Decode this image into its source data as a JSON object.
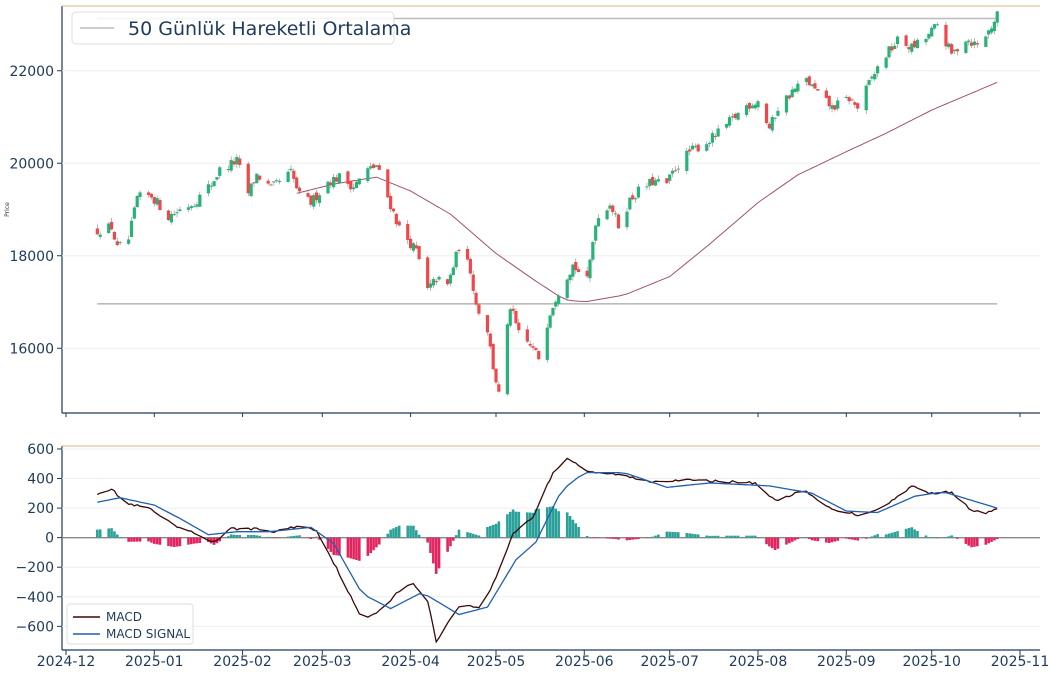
{
  "chart_data": [
    {
      "type": "candlestick",
      "ylabel": "Price",
      "ylim": [
        14600,
        23400
      ],
      "yticks": [
        "16000",
        "18000",
        "20000",
        "22000"
      ],
      "ytick_values": [
        16000,
        18000,
        20000,
        22000
      ],
      "legend": {
        "entries": [
          {
            "label": "50 Günlük Hareketli Ortalama",
            "color": "#bbbbbb"
          }
        ],
        "placement": "top-left"
      },
      "horizontal_lines": [
        {
          "value": 16960,
          "color": "#bbbbbb"
        },
        {
          "value": 23130,
          "color": "#bbbbbb"
        }
      ],
      "series": {
        "close_anchors": [
          [
            "2024-12-12",
            18550
          ],
          [
            "2024-12-17",
            18620
          ],
          [
            "2024-12-19",
            18150
          ],
          [
            "2024-12-23",
            18350
          ],
          [
            "2024-12-26",
            19250
          ],
          [
            "2024-12-31",
            19300
          ],
          [
            "2025-01-06",
            18850
          ],
          [
            "2025-01-10",
            19000
          ],
          [
            "2025-01-15",
            19150
          ],
          [
            "2025-01-21",
            19550
          ],
          [
            "2025-01-24",
            19850
          ],
          [
            "2025-01-30",
            20050
          ],
          [
            "2025-02-03",
            19350
          ],
          [
            "2025-02-06",
            19750
          ],
          [
            "2025-02-11",
            19450
          ],
          [
            "2025-02-18",
            19800
          ],
          [
            "2025-02-21",
            19300
          ],
          [
            "2025-02-25",
            19150
          ],
          [
            "2025-03-03",
            19600
          ],
          [
            "2025-03-07",
            19700
          ],
          [
            "2025-03-12",
            19500
          ],
          [
            "2025-03-17",
            19850
          ],
          [
            "2025-03-20",
            19950
          ],
          [
            "2025-03-25",
            19100
          ],
          [
            "2025-03-28",
            18600
          ],
          [
            "2025-04-03",
            18100
          ],
          [
            "2025-04-07",
            17250
          ],
          [
            "2025-04-10",
            17500
          ],
          [
            "2025-04-14",
            17350
          ],
          [
            "2025-04-18",
            18200
          ],
          [
            "2025-04-22",
            17700
          ],
          [
            "2025-04-24",
            16950
          ],
          [
            "2025-04-28",
            16400
          ],
          [
            "2025-04-30",
            15600
          ],
          [
            "2025-05-02",
            15000
          ],
          [
            "2025-05-06",
            16900
          ],
          [
            "2025-05-09",
            16300
          ],
          [
            "2025-05-13",
            16050
          ],
          [
            "2025-05-16",
            15800
          ],
          [
            "2025-05-20",
            16800
          ],
          [
            "2025-05-23",
            17250
          ],
          [
            "2025-05-28",
            17800
          ],
          [
            "2025-06-02",
            17450
          ],
          [
            "2025-06-05",
            18750
          ],
          [
            "2025-06-10",
            19150
          ],
          [
            "2025-06-13",
            18650
          ],
          [
            "2025-06-17",
            19200
          ],
          [
            "2025-06-20",
            19400
          ],
          [
            "2025-06-25",
            19600
          ],
          [
            "2025-06-30",
            19550
          ],
          [
            "2025-07-03",
            19900
          ],
          [
            "2025-07-08",
            20250
          ],
          [
            "2025-07-14",
            20450
          ],
          [
            "2025-07-18",
            20650
          ],
          [
            "2025-07-23",
            20950
          ],
          [
            "2025-07-28",
            21250
          ],
          [
            "2025-08-01",
            21350
          ],
          [
            "2025-08-05",
            20750
          ],
          [
            "2025-08-08",
            21200
          ],
          [
            "2025-08-13",
            21550
          ],
          [
            "2025-08-18",
            21800
          ],
          [
            "2025-08-22",
            21500
          ],
          [
            "2025-08-27",
            21200
          ],
          [
            "2025-09-02",
            21400
          ],
          [
            "2025-09-05",
            21200
          ],
          [
            "2025-09-10",
            21850
          ],
          [
            "2025-09-15",
            22350
          ],
          [
            "2025-09-19",
            22650
          ],
          [
            "2025-09-24",
            22500
          ],
          [
            "2025-09-29",
            22700
          ],
          [
            "2025-10-03",
            23000
          ],
          [
            "2025-10-08",
            22350
          ],
          [
            "2025-10-13",
            22700
          ],
          [
            "2025-10-17",
            22550
          ],
          [
            "2025-10-21",
            22850
          ],
          [
            "2025-10-24",
            23200
          ]
        ],
        "ma50_anchors": [
          [
            "2025-02-20",
            19350
          ],
          [
            "2025-03-05",
            19550
          ],
          [
            "2025-03-20",
            19700
          ],
          [
            "2025-04-01",
            19400
          ],
          [
            "2025-04-15",
            18900
          ],
          [
            "2025-05-01",
            18050
          ],
          [
            "2025-05-15",
            17450
          ],
          [
            "2025-05-25",
            17050
          ],
          [
            "2025-06-01",
            17000
          ],
          [
            "2025-06-15",
            17150
          ],
          [
            "2025-07-01",
            17550
          ],
          [
            "2025-07-15",
            18250
          ],
          [
            "2025-08-01",
            19150
          ],
          [
            "2025-08-15",
            19750
          ],
          [
            "2025-09-01",
            20250
          ],
          [
            "2025-09-15",
            20650
          ],
          [
            "2025-10-01",
            21150
          ],
          [
            "2025-10-24",
            21750
          ]
        ],
        "bullish_color": "#27b378",
        "bearish_color": "#f0484a",
        "ma_color": "#a05070"
      }
    },
    {
      "type": "line",
      "ylim": [
        -760,
        620
      ],
      "yticks": [
        "−600",
        "−400",
        "−200",
        "0",
        "200",
        "400",
        "600"
      ],
      "ytick_values": [
        -600,
        -400,
        -200,
        0,
        200,
        400,
        600
      ],
      "legend": {
        "entries": [
          {
            "label": "MACD",
            "color": "#3a0a0a"
          },
          {
            "label": "MACD SIGNAL",
            "color": "#1f5fb0"
          }
        ],
        "placement": "bottom-left"
      },
      "series": [
        {
          "name": "MACD",
          "color": "#3a0a0a",
          "anchors": [
            [
              "2024-12-12",
              300
            ],
            [
              "2024-12-17",
              330
            ],
            [
              "2024-12-22",
              230
            ],
            [
              "2024-12-30",
              200
            ],
            [
              "2025-01-08",
              80
            ],
            [
              "2025-01-15",
              30
            ],
            [
              "2025-01-22",
              -30
            ],
            [
              "2025-01-28",
              60
            ],
            [
              "2025-02-05",
              60
            ],
            [
              "2025-02-12",
              40
            ],
            [
              "2025-02-21",
              80
            ],
            [
              "2025-02-27",
              50
            ],
            [
              "2025-03-08",
              -280
            ],
            [
              "2025-03-15",
              -560
            ],
            [
              "2025-03-22",
              -480
            ],
            [
              "2025-03-28",
              -360
            ],
            [
              "2025-04-02",
              -310
            ],
            [
              "2025-04-07",
              -430
            ],
            [
              "2025-04-10",
              -700
            ],
            [
              "2025-04-18",
              -460
            ],
            [
              "2025-04-26",
              -470
            ],
            [
              "2025-05-01",
              -270
            ],
            [
              "2025-05-07",
              30
            ],
            [
              "2025-05-14",
              140
            ],
            [
              "2025-05-21",
              440
            ],
            [
              "2025-05-26",
              540
            ],
            [
              "2025-06-03",
              440
            ],
            [
              "2025-06-12",
              430
            ],
            [
              "2025-06-24",
              380
            ],
            [
              "2025-07-05",
              390
            ],
            [
              "2025-07-20",
              380
            ],
            [
              "2025-07-31",
              370
            ],
            [
              "2025-08-07",
              250
            ],
            [
              "2025-08-17",
              320
            ],
            [
              "2025-08-26",
              200
            ],
            [
              "2025-09-06",
              150
            ],
            [
              "2025-09-15",
              220
            ],
            [
              "2025-09-24",
              350
            ],
            [
              "2025-09-30",
              300
            ],
            [
              "2025-10-08",
              310
            ],
            [
              "2025-10-15",
              180
            ],
            [
              "2025-10-20",
              170
            ],
            [
              "2025-10-24",
              190
            ]
          ]
        },
        {
          "name": "MACD SIGNAL",
          "color": "#1f5fb0",
          "anchors": [
            [
              "2024-12-12",
              240
            ],
            [
              "2024-12-20",
              270
            ],
            [
              "2025-01-01",
              220
            ],
            [
              "2025-01-10",
              130
            ],
            [
              "2025-01-20",
              20
            ],
            [
              "2025-01-30",
              40
            ],
            [
              "2025-02-10",
              40
            ],
            [
              "2025-02-25",
              70
            ],
            [
              "2025-03-05",
              -40
            ],
            [
              "2025-03-15",
              -380
            ],
            [
              "2025-03-25",
              -480
            ],
            [
              "2025-04-05",
              -370
            ],
            [
              "2025-04-18",
              -520
            ],
            [
              "2025-04-28",
              -470
            ],
            [
              "2025-05-08",
              -150
            ],
            [
              "2025-05-15",
              -30
            ],
            [
              "2025-05-24",
              320
            ],
            [
              "2025-06-01",
              440
            ],
            [
              "2025-06-15",
              440
            ],
            [
              "2025-06-30",
              340
            ],
            [
              "2025-07-15",
              370
            ],
            [
              "2025-08-05",
              350
            ],
            [
              "2025-08-20",
              300
            ],
            [
              "2025-09-01",
              180
            ],
            [
              "2025-09-12",
              170
            ],
            [
              "2025-09-25",
              280
            ],
            [
              "2025-10-05",
              310
            ],
            [
              "2025-10-12",
              270
            ],
            [
              "2025-10-24",
              200
            ]
          ]
        }
      ],
      "histogram": {
        "positive_color": "#2aa198",
        "negative_color": "#e0245e"
      },
      "xticks": [
        "2024-12",
        "2025-01",
        "2025-02",
        "2025-03",
        "2025-04",
        "2025-05",
        "2025-06",
        "2025-07",
        "2025-08",
        "2025-09",
        "2025-10",
        "2025-11"
      ],
      "xtick_dates": [
        "2024-12-01",
        "2025-01-01",
        "2025-02-01",
        "2025-03-01",
        "2025-04-01",
        "2025-05-01",
        "2025-06-01",
        "2025-07-01",
        "2025-08-01",
        "2025-09-01",
        "2025-10-01",
        "2025-11-01"
      ]
    }
  ]
}
